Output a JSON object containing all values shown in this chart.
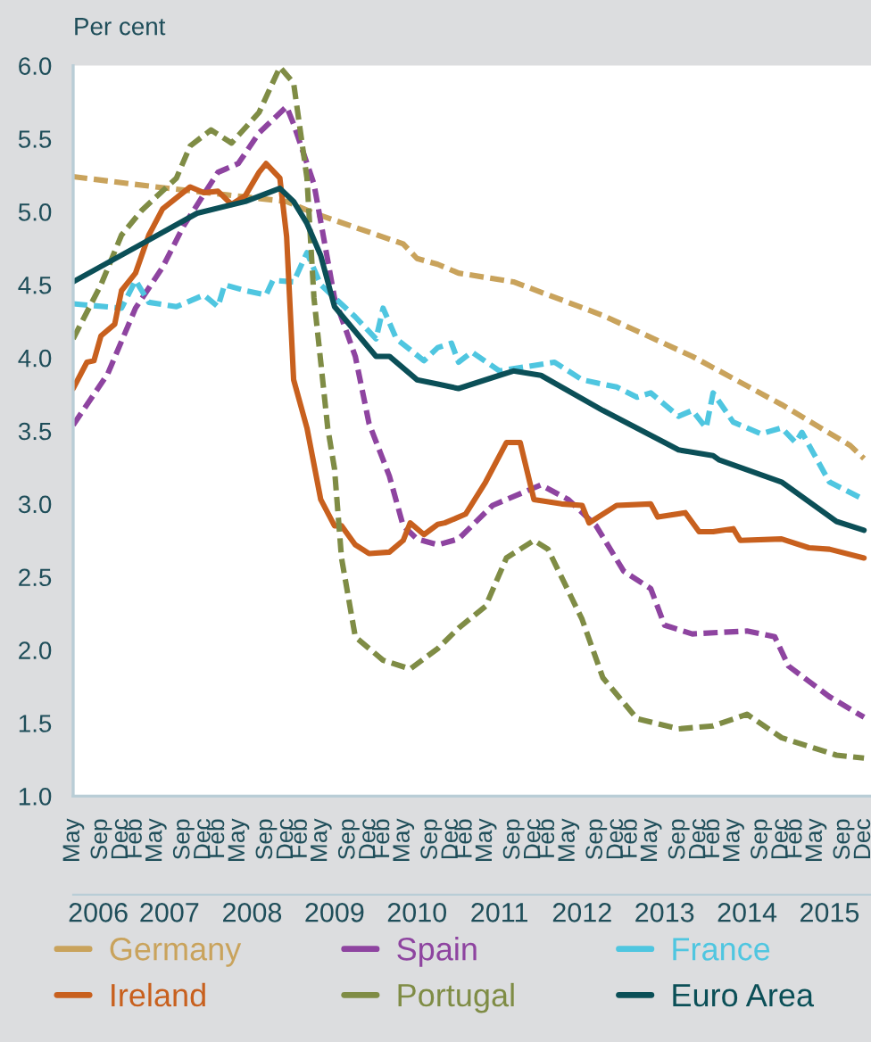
{
  "chart_data": {
    "type": "line",
    "ylabel": "Per cent",
    "xlim": [
      "2006-05",
      "2016-01"
    ],
    "ylim": [
      1,
      6
    ],
    "yticks": [
      {
        "value": 1,
        "label": "1.0"
      },
      {
        "value": 1.5,
        "label": "1.5"
      },
      {
        "value": 2,
        "label": "2.0"
      },
      {
        "value": 2.5,
        "label": "2.5"
      },
      {
        "value": 3,
        "label": "3.0"
      },
      {
        "value": 3.5,
        "label": "3.5"
      },
      {
        "value": 4,
        "label": "4.0"
      },
      {
        "value": 4.5,
        "label": "4.5"
      },
      {
        "value": 5,
        "label": "5.0"
      },
      {
        "value": 5.5,
        "label": "5.5"
      },
      {
        "value": 6,
        "label": "6.0"
      }
    ],
    "xticks": [
      {
        "value": "2006-05",
        "label": "May"
      },
      {
        "value": "2006-09",
        "label": "Sep"
      },
      {
        "value": "2006-12",
        "label": "Dec"
      },
      {
        "value": "2007-02",
        "label": "Feb"
      },
      {
        "value": "2007-05",
        "label": "May"
      },
      {
        "value": "2007-09",
        "label": "Sep"
      },
      {
        "value": "2007-12",
        "label": "Dec"
      },
      {
        "value": "2008-02",
        "label": "Feb"
      },
      {
        "value": "2008-05",
        "label": "May"
      },
      {
        "value": "2008-09",
        "label": "Sep"
      },
      {
        "value": "2008-12",
        "label": "Dec"
      },
      {
        "value": "2009-02",
        "label": "Feb"
      },
      {
        "value": "2009-05",
        "label": "May"
      },
      {
        "value": "2009-09",
        "label": "Sep"
      },
      {
        "value": "2009-12",
        "label": "Dec"
      },
      {
        "value": "2010-02",
        "label": "Feb"
      },
      {
        "value": "2010-05",
        "label": "May"
      },
      {
        "value": "2010-09",
        "label": "Sep"
      },
      {
        "value": "2010-12",
        "label": "Dec"
      },
      {
        "value": "2011-02",
        "label": "Feb"
      },
      {
        "value": "2011-05",
        "label": "May"
      },
      {
        "value": "2011-09",
        "label": "Sep"
      },
      {
        "value": "2011-12",
        "label": "Dec"
      },
      {
        "value": "2012-02",
        "label": "Feb"
      },
      {
        "value": "2012-05",
        "label": "May"
      },
      {
        "value": "2012-09",
        "label": "Sep"
      },
      {
        "value": "2012-12",
        "label": "Dec"
      },
      {
        "value": "2013-02",
        "label": "Feb"
      },
      {
        "value": "2013-05",
        "label": "May"
      },
      {
        "value": "2013-09",
        "label": "Sep"
      },
      {
        "value": "2013-12",
        "label": "Dec"
      },
      {
        "value": "2014-02",
        "label": "Feb"
      },
      {
        "value": "2014-05",
        "label": "May"
      },
      {
        "value": "2014-09",
        "label": "Sep"
      },
      {
        "value": "2014-12",
        "label": "Dec"
      },
      {
        "value": "2015-02",
        "label": "Feb"
      },
      {
        "value": "2015-05",
        "label": "May"
      },
      {
        "value": "2015-09",
        "label": "Sep"
      },
      {
        "value": "2015-12",
        "label": "Dec"
      }
    ],
    "x2lim": [
      "2006-05",
      "2016-01"
    ],
    "x2ticks": [
      {
        "value": "2006-08-20",
        "label": "2006"
      },
      {
        "value": "2007-07",
        "label": "2007"
      },
      {
        "value": "2008-07",
        "label": "2008"
      },
      {
        "value": "2009-07",
        "label": "2009"
      },
      {
        "value": "2010-07",
        "label": "2010"
      },
      {
        "value": "2011-07",
        "label": "2011"
      },
      {
        "value": "2012-07",
        "label": "2012"
      },
      {
        "value": "2013-07",
        "label": "2013"
      },
      {
        "value": "2014-07",
        "label": "2014"
      },
      {
        "value": "2015-07",
        "label": "2015"
      }
    ],
    "grid": false,
    "legend": "bottom",
    "series": [
      {
        "name": "Germany",
        "color": "#c9a35c",
        "line_style": "dashed",
        "x": [
          "2006-05",
          "2007-05",
          "2008-12",
          "2009-04",
          "2010-05",
          "2010-07",
          "2010-10",
          "2011-01",
          "2011-09",
          "2012-10",
          "2013-11",
          "2014-12",
          "2015-10",
          "2015-12"
        ],
        "values": [
          5.24,
          5.17,
          5.07,
          4.99,
          4.78,
          4.68,
          4.64,
          4.58,
          4.52,
          4.29,
          4.01,
          3.68,
          3.4,
          3.31
        ]
      },
      {
        "name": "Spain",
        "color": "#8e44a0",
        "line_style": "dashed",
        "x": [
          "2006-05",
          "2006-10",
          "2007-02",
          "2007-06",
          "2007-09",
          "2008-02",
          "2008-05",
          "2008-08",
          "2008-12",
          "2009-01",
          "2009-04",
          "2009-07",
          "2009-10",
          "2009-12",
          "2010-03",
          "2010-05",
          "2010-07",
          "2010-10",
          "2011-01",
          "2011-06",
          "2011-11",
          "2012-01",
          "2012-05",
          "2012-09",
          "2013-01",
          "2013-05",
          "2013-07",
          "2013-11",
          "2014-07",
          "2014-11",
          "2015-01",
          "2015-07",
          "2015-12"
        ],
        "values": [
          3.54,
          3.89,
          4.34,
          4.62,
          4.9,
          5.27,
          5.33,
          5.54,
          5.72,
          5.6,
          5.19,
          4.41,
          4.01,
          3.55,
          3.19,
          2.85,
          2.76,
          2.72,
          2.76,
          2.99,
          3.09,
          3.13,
          3.03,
          2.85,
          2.54,
          2.42,
          2.17,
          2.11,
          2.13,
          2.09,
          1.89,
          1.68,
          1.54
        ]
      },
      {
        "name": "France",
        "color": "#4fc6e0",
        "line_style": "dashed",
        "x": [
          "2006-05",
          "2006-12",
          "2007-02",
          "2007-04",
          "2007-08",
          "2007-12",
          "2008-02",
          "2008-03",
          "2008-06",
          "2008-09",
          "2008-10",
          "2009-01",
          "2009-03",
          "2009-05",
          "2009-10",
          "2010-01",
          "2010-02",
          "2010-04",
          "2010-08",
          "2010-10",
          "2010-12",
          "2011-01",
          "2011-03",
          "2011-07",
          "2012-03",
          "2012-07",
          "2012-12",
          "2013-03",
          "2013-05",
          "2013-09",
          "2013-11",
          "2014-01",
          "2014-02",
          "2014-05",
          "2014-09",
          "2014-12",
          "2015-02",
          "2015-03",
          "2015-07",
          "2015-12"
        ],
        "values": [
          4.37,
          4.34,
          4.53,
          4.38,
          4.35,
          4.43,
          4.35,
          4.5,
          4.46,
          4.43,
          4.53,
          4.52,
          4.72,
          4.5,
          4.28,
          4.13,
          4.34,
          4.13,
          3.98,
          4.07,
          4.1,
          3.97,
          4.04,
          3.91,
          3.97,
          3.85,
          3.8,
          3.73,
          3.76,
          3.6,
          3.64,
          3.52,
          3.76,
          3.56,
          3.48,
          3.52,
          3.42,
          3.49,
          3.15,
          3.03
        ]
      },
      {
        "name": "Ireland",
        "color": "#c8601e",
        "line_style": "solid",
        "x": [
          "2006-05",
          "2006-07",
          "2006-08",
          "2006-09",
          "2006-11",
          "2006-12",
          "2007-02",
          "2007-04",
          "2007-06",
          "2007-10",
          "2007-12",
          "2008-02",
          "2008-04",
          "2008-06",
          "2008-08",
          "2008-09",
          "2008-11",
          "2008-12",
          "2009-01",
          "2009-03",
          "2009-05",
          "2009-07",
          "2009-08",
          "2009-10",
          "2009-12",
          "2010-03",
          "2010-05",
          "2010-06",
          "2010-08",
          "2010-10",
          "2010-11",
          "2011-02",
          "2011-05",
          "2011-08",
          "2011-10",
          "2011-12",
          "2012-04",
          "2012-07",
          "2012-08",
          "2012-12",
          "2013-05",
          "2013-06",
          "2013-10",
          "2013-12",
          "2014-02",
          "2014-05",
          "2014-06",
          "2014-12",
          "2015-04",
          "2015-07",
          "2015-12"
        ],
        "values": [
          3.79,
          3.97,
          3.98,
          4.15,
          4.23,
          4.46,
          4.58,
          4.84,
          5.02,
          5.17,
          5.13,
          5.14,
          5.05,
          5.11,
          5.27,
          5.33,
          5.23,
          4.83,
          3.85,
          3.52,
          3.03,
          2.85,
          2.85,
          2.72,
          2.66,
          2.67,
          2.75,
          2.87,
          2.79,
          2.86,
          2.87,
          2.93,
          3.15,
          3.42,
          3.42,
          3.03,
          3.0,
          2.99,
          2.87,
          2.99,
          3.0,
          2.91,
          2.94,
          2.81,
          2.81,
          2.83,
          2.75,
          2.76,
          2.7,
          2.69,
          2.63
        ]
      },
      {
        "name": "Portugal",
        "color": "#7f8c45",
        "line_style": "dashed",
        "x": [
          "2006-05",
          "2006-09",
          "2006-12",
          "2007-03",
          "2007-08",
          "2007-10",
          "2008-01",
          "2008-04",
          "2008-08",
          "2008-11",
          "2009-01",
          "2009-03",
          "2009-04",
          "2009-06",
          "2009-07",
          "2009-08",
          "2009-10",
          "2010-02",
          "2010-06",
          "2010-10",
          "2011-01",
          "2011-05",
          "2011-08",
          "2011-12",
          "2012-02",
          "2012-07",
          "2012-10",
          "2013-03",
          "2013-09",
          "2014-02",
          "2014-07",
          "2014-12",
          "2015-08",
          "2015-12"
        ],
        "values": [
          4.13,
          4.5,
          4.84,
          5.01,
          5.23,
          5.45,
          5.56,
          5.47,
          5.68,
          5.99,
          5.88,
          5.23,
          4.41,
          3.52,
          3.24,
          2.63,
          2.09,
          1.93,
          1.87,
          2.01,
          2.15,
          2.3,
          2.63,
          2.75,
          2.69,
          2.21,
          1.81,
          1.53,
          1.46,
          1.48,
          1.56,
          1.4,
          1.28,
          1.26
        ]
      },
      {
        "name": "Euro Area",
        "color": "#0b4f57",
        "line_style": "solid",
        "x": [
          "2006-05",
          "2007-03",
          "2007-11",
          "2008-06",
          "2008-11",
          "2009-01",
          "2009-03",
          "2009-05",
          "2009-07",
          "2010-01",
          "2010-03",
          "2010-07",
          "2010-10",
          "2011-01",
          "2011-07",
          "2011-09",
          "2012-01",
          "2012-10",
          "2013-07",
          "2013-09",
          "2014-02",
          "2014-03",
          "2014-12",
          "2015-08",
          "2015-12"
        ],
        "values": [
          4.52,
          4.78,
          4.99,
          5.07,
          5.16,
          5.07,
          4.92,
          4.7,
          4.35,
          4.01,
          4.01,
          3.85,
          3.82,
          3.79,
          3.88,
          3.91,
          3.88,
          3.64,
          3.42,
          3.37,
          3.33,
          3.3,
          3.15,
          2.88,
          2.82
        ]
      }
    ]
  }
}
